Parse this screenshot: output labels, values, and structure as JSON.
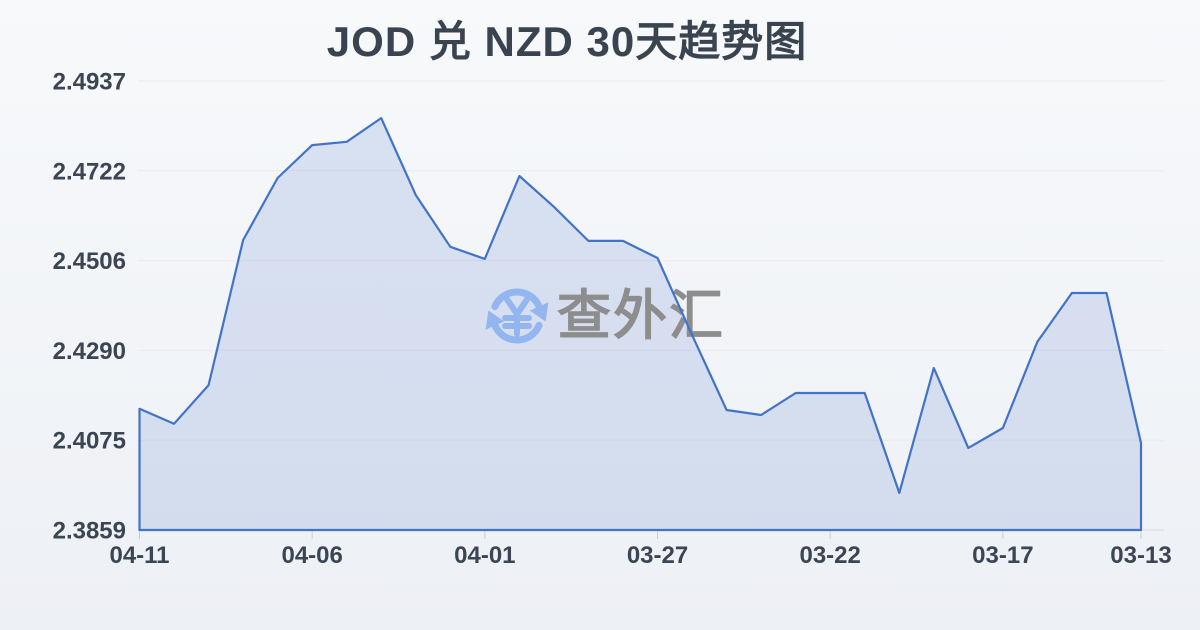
{
  "watermark": {
    "icon": "currency-exchange-refresh-icon",
    "symbol": "¥",
    "text": "查外汇"
  },
  "chart_data": {
    "type": "area",
    "title": "JOD 兑 NZD 30天趋势图",
    "xlabel": "",
    "ylabel": "",
    "x": [
      "04-11",
      "04-10",
      "04-09",
      "04-08",
      "04-07",
      "04-06",
      "04-05",
      "04-04",
      "04-03",
      "04-02",
      "04-01",
      "03-31",
      "03-30",
      "03-29",
      "03-28",
      "03-27",
      "03-26",
      "03-25",
      "03-24",
      "03-23",
      "03-22",
      "03-21",
      "03-20",
      "03-19",
      "03-18",
      "03-17",
      "03-16",
      "03-15",
      "03-14",
      "03-13"
    ],
    "values": [
      2.415,
      2.4114,
      2.4207,
      2.4555,
      2.4704,
      2.4783,
      2.4791,
      2.4848,
      2.4663,
      2.4539,
      2.451,
      2.4709,
      2.4635,
      2.4553,
      2.4553,
      2.4512,
      2.4327,
      2.4147,
      2.4135,
      2.4188,
      2.4188,
      2.4188,
      2.3948,
      2.4248,
      2.4056,
      2.4104,
      2.4311,
      2.4428,
      2.4428,
      2.4068
    ],
    "y_ticks": [
      "2.4937",
      "2.4722",
      "2.4506",
      "2.4290",
      "2.4075",
      "2.3859"
    ],
    "x_tick_labels": [
      "04-11",
      "04-06",
      "04-01",
      "03-27",
      "03-22",
      "03-17",
      "03-13"
    ],
    "x_tick_indices": [
      0,
      5,
      10,
      15,
      20,
      25,
      29
    ],
    "ylim": [
      2.3859,
      2.4937
    ],
    "x_order": "reverse-chronological",
    "grid": true,
    "legend": "none",
    "colors": {
      "line": "#4273c8",
      "fill": "rgba(66,115,200,0.16)",
      "grid": "#e8eaed",
      "axis_line": "#d7dbe1",
      "tick": "#c9ced6",
      "axis_text": "#3c4553",
      "title_text": "#3a4350",
      "watermark_text": "#8d8d8d",
      "watermark_icon": "#93b6f0",
      "background_top": "#f7f9fb",
      "background_bottom": "#edf0f5"
    }
  }
}
